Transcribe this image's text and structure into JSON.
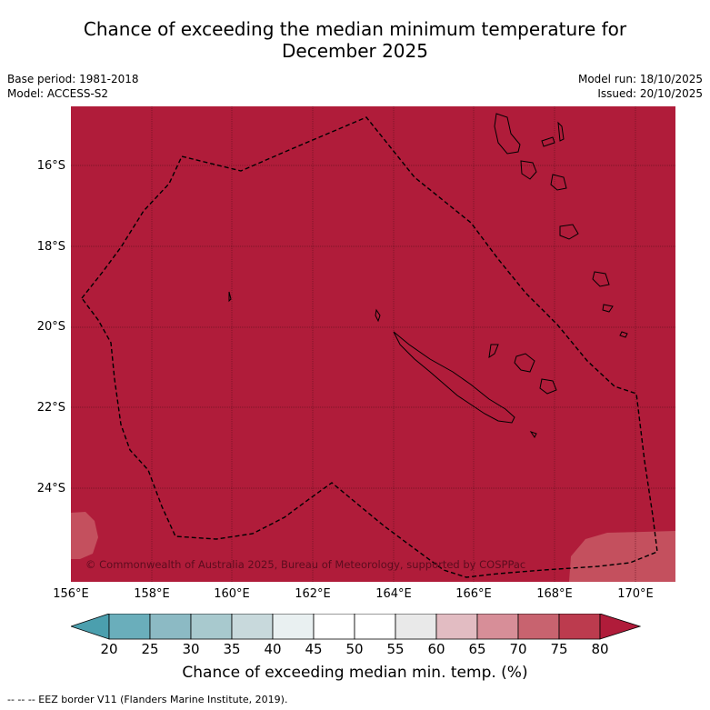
{
  "title_line1": "Chance of exceeding the median minimum temperature for",
  "title_line2": "December 2025",
  "meta": {
    "base_period": "Base period: 1981-2018",
    "model": "Model: ACCESS-S2",
    "model_run": "Model run: 18/10/2025",
    "issued": "Issued: 20/10/2025"
  },
  "map": {
    "copyright": "© Commonwealth of Australia 2025, Bureau of Meteorology, supported by COSPPac",
    "lat_labels": [
      "16°S",
      "18°S",
      "20°S",
      "22°S",
      "24°S"
    ],
    "lon_labels": [
      "156°E",
      "158°E",
      "160°E",
      "162°E",
      "164°E",
      "166°E",
      "168°E",
      "170°E"
    ],
    "dominant_category": "75-80+",
    "dominant_color": "#b01c3a",
    "light_patch_color": "#c4505e"
  },
  "colorbar": {
    "ticks": [
      "20",
      "25",
      "30",
      "35",
      "40",
      "45",
      "50",
      "55",
      "60",
      "65",
      "70",
      "75",
      "80"
    ],
    "colors": [
      "#4b9fae",
      "#6aaebb",
      "#8cbac4",
      "#a8c9ce",
      "#c8d9dc",
      "#e9f0f1",
      "#ffffff",
      "#ffffff",
      "#e9e9e9",
      "#e2bcc2",
      "#d78e98",
      "#c8636f",
      "#bc3b4e",
      "#b01c3a"
    ],
    "title": "Chance of exceeding median min. temp. (%)"
  },
  "footnote": "--  --  -- EEZ border V11 (Flanders Marine Institute, 2019)."
}
